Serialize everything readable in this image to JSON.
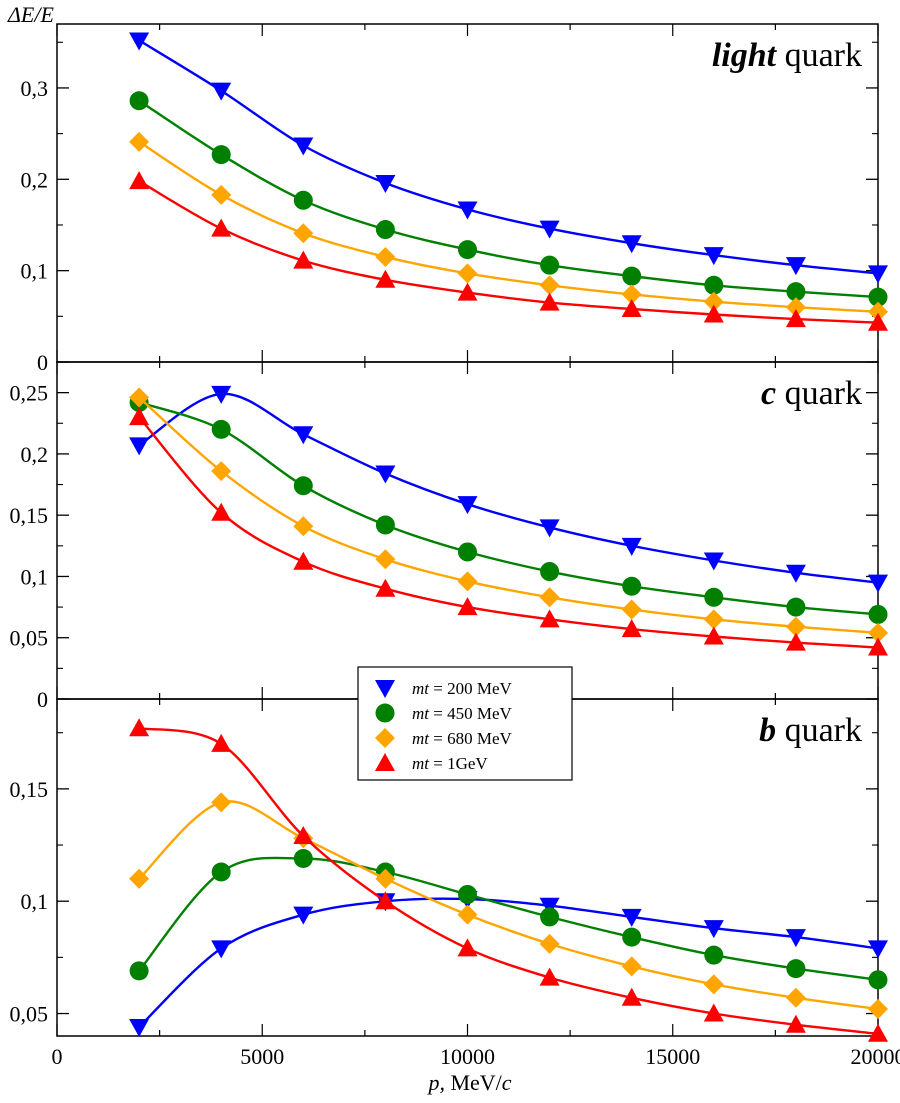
{
  "chart_data": {
    "type": "scatter",
    "y_axis_label": "ΔE/E",
    "x_axis": {
      "label_var": "p,",
      "label_unit_prefix": " MeV/",
      "label_unit_var": "c",
      "lim": [
        0,
        20000
      ],
      "ticks": [
        0,
        5000,
        10000,
        15000,
        20000
      ],
      "tick_labels": [
        "0",
        "5000",
        "10000",
        "15000",
        "20000"
      ]
    },
    "x": [
      2000,
      4000,
      6000,
      8000,
      10000,
      12000,
      14000,
      16000,
      18000,
      20000
    ],
    "legend": {
      "position": "center",
      "var_label": "mt",
      "entries": [
        {
          "key": "mt200",
          "text": " = 200 MeV",
          "color": "#0000ff",
          "marker": "triangle-down"
        },
        {
          "key": "mt450",
          "text": " = 450 MeV",
          "color": "#008000",
          "marker": "circle"
        },
        {
          "key": "mt680",
          "text": " = 680 MeV",
          "color": "#ffa500",
          "marker": "diamond"
        },
        {
          "key": "mt1000",
          "text": " = 1GeV",
          "color": "#ff0000",
          "marker": "triangle-up"
        }
      ]
    },
    "panels": [
      {
        "id": "light",
        "title_bold": "light",
        "title_rest": " quark",
        "ylim": [
          0,
          0.37
        ],
        "yticks": [
          0,
          0.1,
          0.2,
          0.3
        ],
        "ytick_labels": [
          "0",
          "0,1",
          "0,2",
          "0,3"
        ],
        "series": [
          {
            "key": "mt200",
            "values": [
              0.352,
              0.297,
              0.237,
              0.196,
              0.167,
              0.146,
              0.13,
              0.117,
              0.106,
              0.097
            ]
          },
          {
            "key": "mt450",
            "values": [
              0.286,
              0.227,
              0.177,
              0.145,
              0.123,
              0.106,
              0.094,
              0.084,
              0.077,
              0.071
            ]
          },
          {
            "key": "mt680",
            "values": [
              0.241,
              0.183,
              0.141,
              0.115,
              0.097,
              0.084,
              0.074,
              0.066,
              0.06,
              0.055
            ]
          },
          {
            "key": "mt1000",
            "values": [
              0.198,
              0.146,
              0.111,
              0.09,
              0.076,
              0.065,
              0.058,
              0.052,
              0.047,
              0.043
            ]
          }
        ]
      },
      {
        "id": "c",
        "title_bold": "c",
        "title_rest": " quark",
        "ylim": [
          0,
          0.275
        ],
        "yticks": [
          0,
          0.05,
          0.1,
          0.15,
          0.2,
          0.25
        ],
        "ytick_labels": [
          "0",
          "0,05",
          "0,1",
          "0,15",
          "0,2",
          "0,25"
        ],
        "series": [
          {
            "key": "mt200",
            "values": [
              0.207,
              0.249,
              0.216,
              0.184,
              0.159,
              0.14,
              0.125,
              0.113,
              0.103,
              0.095
            ]
          },
          {
            "key": "mt450",
            "values": [
              0.242,
              0.22,
              0.174,
              0.142,
              0.12,
              0.104,
              0.092,
              0.083,
              0.075,
              0.069
            ]
          },
          {
            "key": "mt680",
            "values": [
              0.246,
              0.186,
              0.141,
              0.114,
              0.096,
              0.083,
              0.073,
              0.065,
              0.059,
              0.054
            ]
          },
          {
            "key": "mt1000",
            "values": [
              0.23,
              0.152,
              0.112,
              0.09,
              0.075,
              0.065,
              0.057,
              0.051,
              0.046,
              0.042
            ]
          }
        ]
      },
      {
        "id": "b",
        "title_bold": "b",
        "title_rest": " quark",
        "ylim": [
          0.04,
          0.19
        ],
        "yticks": [
          0.05,
          0.1,
          0.15
        ],
        "ytick_labels": [
          "0,05",
          "0,1",
          "0,15"
        ],
        "series": [
          {
            "key": "mt200",
            "values": [
              0.044,
              0.079,
              0.094,
              0.1,
              0.101,
              0.098,
              0.093,
              0.088,
              0.084,
              0.079
            ]
          },
          {
            "key": "mt450",
            "values": [
              0.069,
              0.113,
              0.119,
              0.113,
              0.103,
              0.093,
              0.084,
              0.076,
              0.07,
              0.065
            ]
          },
          {
            "key": "mt680",
            "values": [
              0.11,
              0.144,
              0.128,
              0.11,
              0.094,
              0.081,
              0.071,
              0.063,
              0.057,
              0.052
            ]
          },
          {
            "key": "mt1000",
            "values": [
              0.177,
              0.17,
              0.129,
              0.1,
              0.079,
              0.066,
              0.057,
              0.05,
              0.045,
              0.041
            ]
          }
        ]
      }
    ]
  }
}
